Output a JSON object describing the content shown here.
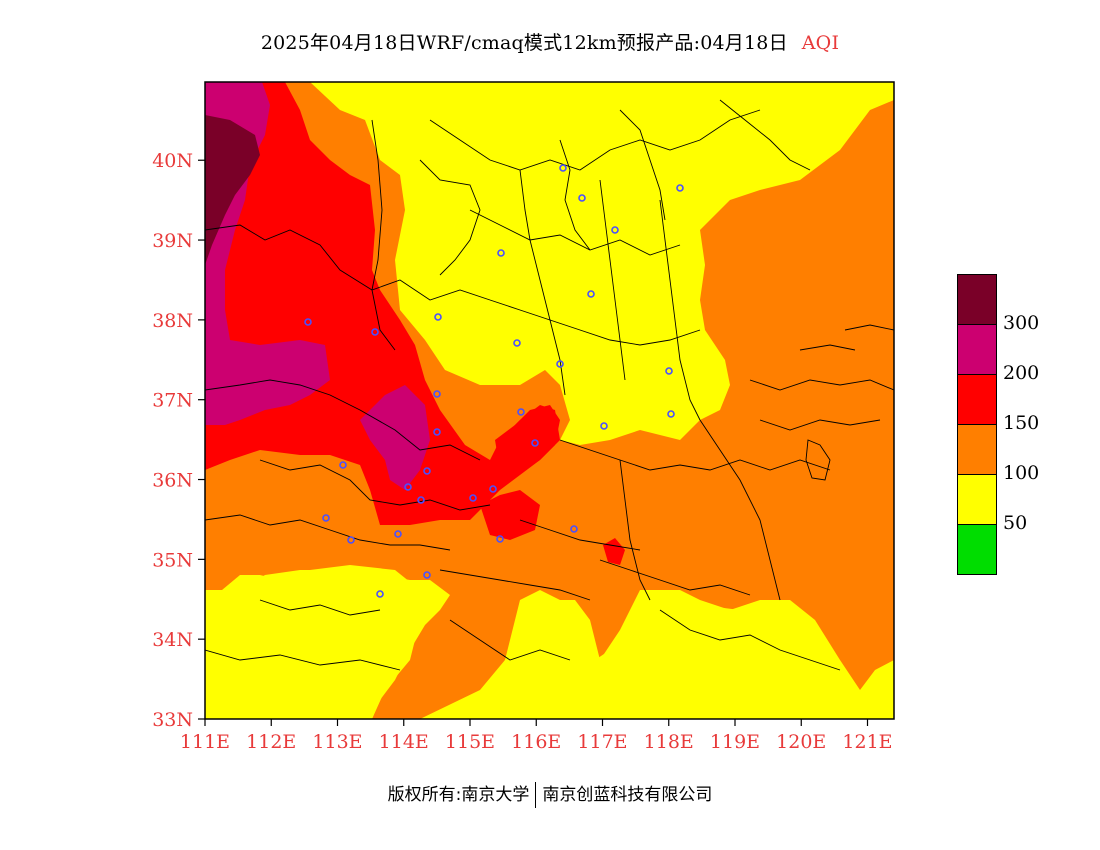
{
  "title": {
    "main": "2025年04月18日WRF/cmaq模式12km预报产品:04月18日",
    "tag": "AQI"
  },
  "map": {
    "lat_ticks": [
      "33N",
      "34N",
      "35N",
      "36N",
      "37N",
      "38N",
      "39N",
      "40N"
    ],
    "lon_ticks": [
      "111E",
      "112E",
      "113E",
      "114E",
      "115E",
      "116E",
      "117E",
      "118E",
      "119E",
      "120E",
      "121E"
    ],
    "lon_range": [
      111,
      121.4
    ],
    "lat_range": [
      33,
      40.98
    ]
  },
  "legend": {
    "colors": [
      "#7a0028",
      "#cc0070",
      "#ff0000",
      "#ff7f00",
      "#ffff00",
      "#00dd00"
    ],
    "labels": [
      "300",
      "200",
      "150",
      "100",
      "50"
    ]
  },
  "footer": {
    "left": "版权所有:南京大学",
    "right": "南京创蓝科技有限公司"
  }
}
